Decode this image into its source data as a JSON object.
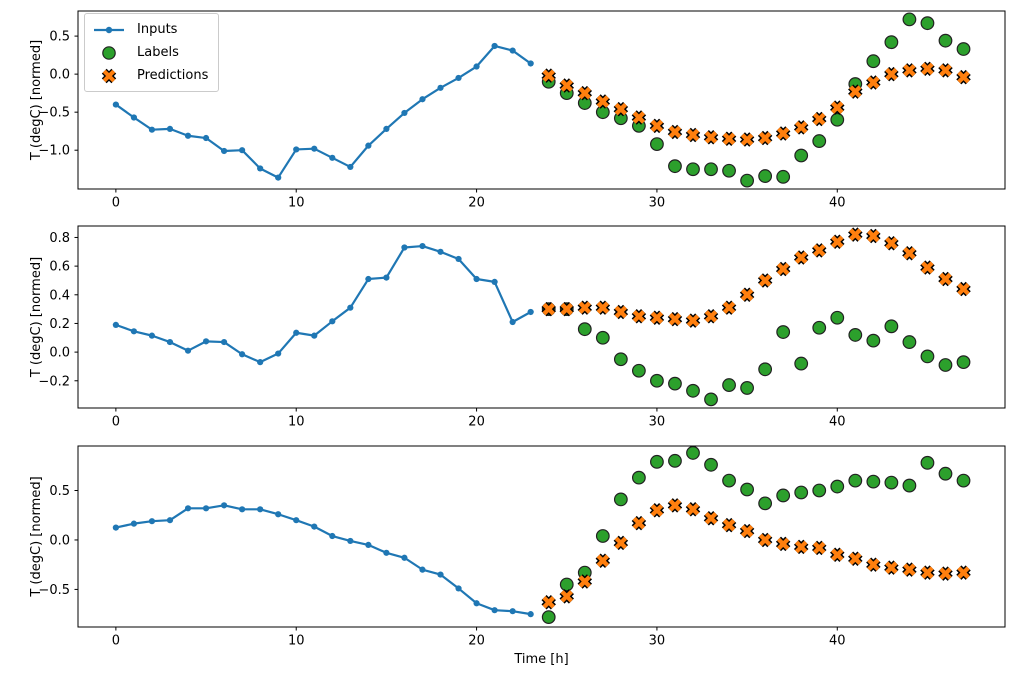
{
  "figure": {
    "xlabel": "Time [h]",
    "ylabel": "T (degC) [normed]",
    "background": "#ffffff",
    "legend": {
      "position": "upper-left",
      "entries": [
        {
          "label": "Inputs",
          "marker": "line-dot",
          "color": "#1f77b4"
        },
        {
          "label": "Labels",
          "marker": "circle",
          "color": "#2ca02c"
        },
        {
          "label": "Predictions",
          "marker": "x",
          "color": "#ff7f0e"
        }
      ]
    }
  },
  "chart_data": [
    {
      "type": "line",
      "title": "",
      "xlabel": "",
      "ylabel": "T (degC) [normed]",
      "grid": false,
      "xlim": [
        -2.1,
        49.3
      ],
      "ylim": [
        -1.51,
        0.83
      ],
      "x_ticks": [
        0,
        10,
        20,
        30,
        40
      ],
      "x_tick_labels": [
        "0",
        "10",
        "20",
        "30",
        "40"
      ],
      "y_ticks": [
        0.5,
        0.0,
        -0.5,
        -1.0
      ],
      "y_tick_labels": [
        "0.5",
        "0.0",
        "−0.5",
        "−1.0"
      ],
      "series": [
        {
          "name": "Inputs",
          "kind": "line",
          "color": "#1f77b4",
          "x": [
            0,
            1,
            2,
            3,
            4,
            5,
            6,
            7,
            8,
            9,
            10,
            11,
            12,
            13,
            14,
            15,
            16,
            17,
            18,
            19,
            20,
            21,
            22,
            23
          ],
          "y": [
            -0.4,
            -0.57,
            -0.73,
            -0.72,
            -0.81,
            -0.84,
            -1.01,
            -1.0,
            -1.24,
            -1.36,
            -0.99,
            -0.98,
            -1.1,
            -1.22,
            -0.94,
            -0.72,
            -0.51,
            -0.33,
            -0.18,
            -0.05,
            0.1,
            0.37,
            0.31,
            0.14
          ]
        },
        {
          "name": "Labels",
          "kind": "circle",
          "color": "#2ca02c",
          "edge": "#222222",
          "x": [
            24,
            25,
            26,
            27,
            28,
            29,
            30,
            31,
            32,
            33,
            34,
            35,
            36,
            37,
            38,
            39,
            40,
            41,
            42,
            43,
            44,
            45,
            46,
            47
          ],
          "y": [
            -0.1,
            -0.25,
            -0.38,
            -0.5,
            -0.58,
            -0.68,
            -0.92,
            -1.21,
            -1.25,
            -1.25,
            -1.27,
            -1.4,
            -1.34,
            -1.35,
            -1.07,
            -0.88,
            -0.6,
            -0.13,
            0.17,
            0.42,
            0.72,
            0.67,
            0.44,
            0.33
          ]
        },
        {
          "name": "Predictions",
          "kind": "x",
          "color": "#ff7f0e",
          "edge": "#000000",
          "x": [
            24,
            25,
            26,
            27,
            28,
            29,
            30,
            31,
            32,
            33,
            34,
            35,
            36,
            37,
            38,
            39,
            40,
            41,
            42,
            43,
            44,
            45,
            46,
            47
          ],
          "y": [
            -0.02,
            -0.15,
            -0.25,
            -0.36,
            -0.46,
            -0.57,
            -0.68,
            -0.76,
            -0.8,
            -0.83,
            -0.85,
            -0.86,
            -0.84,
            -0.78,
            -0.7,
            -0.59,
            -0.44,
            -0.23,
            -0.11,
            0.0,
            0.05,
            0.07,
            0.05,
            -0.04
          ]
        }
      ]
    },
    {
      "type": "line",
      "title": "",
      "xlabel": "",
      "ylabel": "T (degC) [normed]",
      "grid": false,
      "xlim": [
        -2.1,
        49.3
      ],
      "ylim": [
        -0.39,
        0.88
      ],
      "x_ticks": [
        0,
        10,
        20,
        30,
        40
      ],
      "x_tick_labels": [
        "0",
        "10",
        "20",
        "30",
        "40"
      ],
      "y_ticks": [
        0.8,
        0.6,
        0.4,
        0.2,
        0.0,
        -0.2
      ],
      "y_tick_labels": [
        "0.8",
        "0.6",
        "0.4",
        "0.2",
        "0.0",
        "−0.2"
      ],
      "series": [
        {
          "name": "Inputs",
          "kind": "line",
          "color": "#1f77b4",
          "x": [
            0,
            1,
            2,
            3,
            4,
            5,
            6,
            7,
            8,
            9,
            10,
            11,
            12,
            13,
            14,
            15,
            16,
            17,
            18,
            19,
            20,
            21,
            22,
            23
          ],
          "y": [
            0.19,
            0.145,
            0.115,
            0.07,
            0.01,
            0.075,
            0.07,
            -0.015,
            -0.07,
            -0.01,
            0.135,
            0.115,
            0.215,
            0.31,
            0.51,
            0.52,
            0.73,
            0.74,
            0.7,
            0.65,
            0.51,
            0.49,
            0.21,
            0.28
          ]
        },
        {
          "name": "Labels",
          "kind": "circle",
          "color": "#2ca02c",
          "edge": "#222222",
          "x": [
            24,
            25,
            26,
            27,
            28,
            29,
            30,
            31,
            32,
            33,
            34,
            35,
            36,
            37,
            38,
            39,
            40,
            41,
            42,
            43,
            44,
            45,
            46,
            47
          ],
          "y": [
            0.3,
            0.3,
            0.16,
            0.1,
            -0.05,
            -0.13,
            -0.2,
            -0.22,
            -0.27,
            -0.33,
            -0.23,
            -0.25,
            -0.12,
            0.14,
            -0.08,
            0.17,
            0.24,
            0.12,
            0.08,
            0.18,
            0.07,
            -0.03,
            -0.09,
            -0.07
          ]
        },
        {
          "name": "Predictions",
          "kind": "x",
          "color": "#ff7f0e",
          "edge": "#000000",
          "x": [
            24,
            25,
            26,
            27,
            28,
            29,
            30,
            31,
            32,
            33,
            34,
            35,
            36,
            37,
            38,
            39,
            40,
            41,
            42,
            43,
            44,
            45,
            46,
            47
          ],
          "y": [
            0.3,
            0.3,
            0.31,
            0.31,
            0.28,
            0.25,
            0.24,
            0.23,
            0.22,
            0.25,
            0.31,
            0.4,
            0.5,
            0.58,
            0.66,
            0.71,
            0.77,
            0.82,
            0.81,
            0.76,
            0.69,
            0.59,
            0.51,
            0.44
          ]
        }
      ]
    },
    {
      "type": "line",
      "title": "",
      "xlabel": "Time [h]",
      "ylabel": "T (degC) [normed]",
      "grid": false,
      "xlim": [
        -2.1,
        49.3
      ],
      "ylim": [
        -0.88,
        0.95
      ],
      "x_ticks": [
        0,
        10,
        20,
        30,
        40
      ],
      "x_tick_labels": [
        "0",
        "10",
        "20",
        "30",
        "40"
      ],
      "y_ticks": [
        0.5,
        0.0,
        -0.5
      ],
      "y_tick_labels": [
        "0.5",
        "0.0",
        "−0.5"
      ],
      "series": [
        {
          "name": "Inputs",
          "kind": "line",
          "color": "#1f77b4",
          "x": [
            0,
            1,
            2,
            3,
            4,
            5,
            6,
            7,
            8,
            9,
            10,
            11,
            12,
            13,
            14,
            15,
            16,
            17,
            18,
            19,
            20,
            21,
            22,
            23
          ],
          "y": [
            0.125,
            0.165,
            0.19,
            0.2,
            0.32,
            0.32,
            0.35,
            0.31,
            0.31,
            0.26,
            0.2,
            0.135,
            0.04,
            -0.01,
            -0.05,
            -0.13,
            -0.18,
            -0.3,
            -0.35,
            -0.49,
            -0.64,
            -0.71,
            -0.72,
            -0.75
          ]
        },
        {
          "name": "Labels",
          "kind": "circle",
          "color": "#2ca02c",
          "edge": "#222222",
          "x": [
            24,
            25,
            26,
            27,
            28,
            29,
            30,
            31,
            32,
            33,
            34,
            35,
            36,
            37,
            38,
            39,
            40,
            41,
            42,
            43,
            44,
            45,
            46,
            47
          ],
          "y": [
            -0.78,
            -0.45,
            -0.33,
            0.04,
            0.41,
            0.63,
            0.79,
            0.8,
            0.88,
            0.76,
            0.6,
            0.51,
            0.37,
            0.45,
            0.48,
            0.5,
            0.54,
            0.6,
            0.59,
            0.58,
            0.55,
            0.78,
            0.67,
            0.6
          ]
        },
        {
          "name": "Predictions",
          "kind": "x",
          "color": "#ff7f0e",
          "edge": "#000000",
          "x": [
            24,
            25,
            26,
            27,
            28,
            29,
            30,
            31,
            32,
            33,
            34,
            35,
            36,
            37,
            38,
            39,
            40,
            41,
            42,
            43,
            44,
            45,
            46,
            47
          ],
          "y": [
            -0.63,
            -0.57,
            -0.42,
            -0.21,
            -0.03,
            0.17,
            0.3,
            0.35,
            0.31,
            0.22,
            0.15,
            0.09,
            0.0,
            -0.04,
            -0.07,
            -0.08,
            -0.15,
            -0.19,
            -0.25,
            -0.28,
            -0.3,
            -0.33,
            -0.34,
            -0.33
          ]
        }
      ]
    }
  ]
}
